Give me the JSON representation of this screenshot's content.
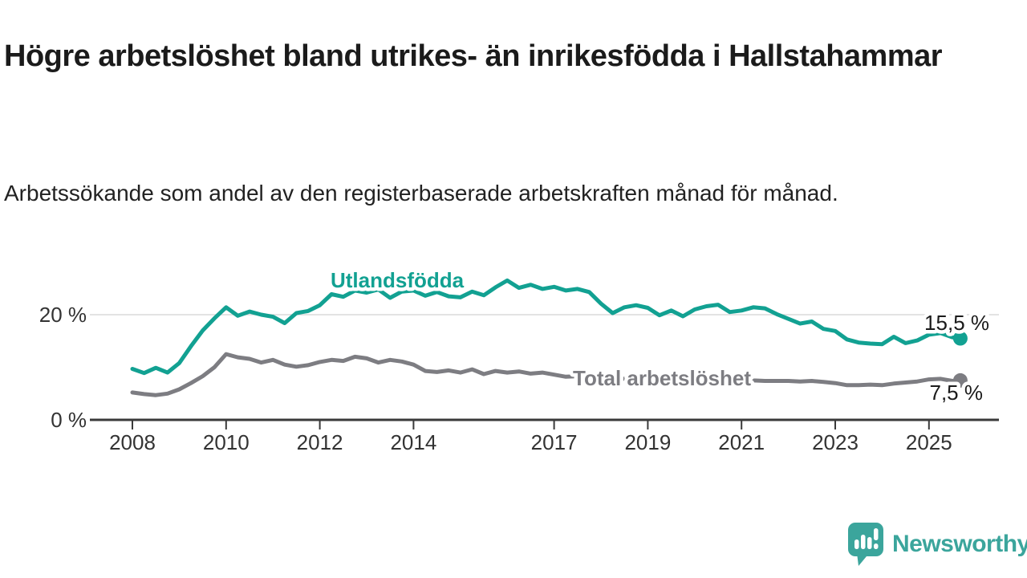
{
  "header": {
    "title": "Högre arbetslöshet bland utrikes- än inrikesfödda i Hallstahammar",
    "subtitle": "Arbetssökande som andel av den registerbaserade arbetskraften månad för månad."
  },
  "branding": {
    "logo_text": "Newsworthy",
    "logo_color": "#3ba59c"
  },
  "chart_data": {
    "type": "line",
    "title": "Högre arbetslöshet bland utrikes- än inrikesfödda i Hallstahammar",
    "xlabel": "",
    "ylabel": "Arbetssökande som andel av den registerbaserade arbetskraften",
    "unit": "%",
    "grid": "horizontal gridline at 20 % only",
    "legend_position": "inline labels on lines",
    "xlim": [
      2007.1,
      2026.4
    ],
    "ylim": [
      0,
      33
    ],
    "x_ticks": [
      "2008",
      "2010",
      "2012",
      "2014",
      "2017",
      "2019",
      "2021",
      "2023",
      "2025"
    ],
    "x_tick_years": [
      2008,
      2010,
      2012,
      2014,
      2017,
      2019,
      2021,
      2023,
      2025
    ],
    "y_ticks": [
      {
        "value": 0,
        "label": "0 %"
      },
      {
        "value": 20,
        "label": "20 %"
      }
    ],
    "series": [
      {
        "name": "Utlandsfödda",
        "color": "#12a192",
        "end_value": 15.5,
        "end_label": "15,5 %",
        "points": [
          [
            2008.0,
            9.7
          ],
          [
            2008.25,
            8.9
          ],
          [
            2008.5,
            9.9
          ],
          [
            2008.75,
            9.0
          ],
          [
            2009.0,
            10.8
          ],
          [
            2009.25,
            14.0
          ],
          [
            2009.5,
            17.0
          ],
          [
            2009.75,
            19.3
          ],
          [
            2010.0,
            21.4
          ],
          [
            2010.25,
            19.8
          ],
          [
            2010.5,
            20.6
          ],
          [
            2010.75,
            20.0
          ],
          [
            2011.0,
            19.6
          ],
          [
            2011.25,
            18.4
          ],
          [
            2011.5,
            20.3
          ],
          [
            2011.75,
            20.7
          ],
          [
            2012.0,
            21.8
          ],
          [
            2012.25,
            23.9
          ],
          [
            2012.5,
            23.4
          ],
          [
            2012.75,
            24.6
          ],
          [
            2013.0,
            24.2
          ],
          [
            2013.25,
            24.8
          ],
          [
            2013.5,
            23.2
          ],
          [
            2013.75,
            24.4
          ],
          [
            2014.0,
            24.6
          ],
          [
            2014.25,
            23.6
          ],
          [
            2014.5,
            24.3
          ],
          [
            2014.75,
            23.5
          ],
          [
            2015.0,
            23.3
          ],
          [
            2015.25,
            24.4
          ],
          [
            2015.5,
            23.7
          ],
          [
            2015.75,
            25.2
          ],
          [
            2016.0,
            26.5
          ],
          [
            2016.25,
            25.1
          ],
          [
            2016.5,
            25.7
          ],
          [
            2016.75,
            24.9
          ],
          [
            2017.0,
            25.3
          ],
          [
            2017.25,
            24.6
          ],
          [
            2017.5,
            24.9
          ],
          [
            2017.75,
            24.3
          ],
          [
            2018.0,
            22.1
          ],
          [
            2018.25,
            20.3
          ],
          [
            2018.5,
            21.4
          ],
          [
            2018.75,
            21.8
          ],
          [
            2019.0,
            21.3
          ],
          [
            2019.25,
            19.9
          ],
          [
            2019.5,
            20.8
          ],
          [
            2019.75,
            19.7
          ],
          [
            2020.0,
            21.0
          ],
          [
            2020.25,
            21.6
          ],
          [
            2020.5,
            21.9
          ],
          [
            2020.75,
            20.5
          ],
          [
            2021.0,
            20.8
          ],
          [
            2021.25,
            21.4
          ],
          [
            2021.5,
            21.2
          ],
          [
            2021.75,
            20.1
          ],
          [
            2022.0,
            19.2
          ],
          [
            2022.25,
            18.3
          ],
          [
            2022.5,
            18.7
          ],
          [
            2022.75,
            17.3
          ],
          [
            2023.0,
            16.9
          ],
          [
            2023.25,
            15.3
          ],
          [
            2023.5,
            14.7
          ],
          [
            2023.75,
            14.5
          ],
          [
            2024.0,
            14.4
          ],
          [
            2024.25,
            15.8
          ],
          [
            2024.5,
            14.6
          ],
          [
            2024.75,
            15.1
          ],
          [
            2025.0,
            16.2
          ],
          [
            2025.25,
            16.5
          ],
          [
            2025.5,
            15.7
          ],
          [
            2025.67,
            15.5
          ]
        ]
      },
      {
        "name": "Total arbetslöshet",
        "color": "#7d7d82",
        "end_value": 7.5,
        "end_label": "7,5 %",
        "points": [
          [
            2008.0,
            5.2
          ],
          [
            2008.25,
            4.9
          ],
          [
            2008.5,
            4.7
          ],
          [
            2008.75,
            5.0
          ],
          [
            2009.0,
            5.8
          ],
          [
            2009.25,
            7.0
          ],
          [
            2009.5,
            8.3
          ],
          [
            2009.75,
            10.0
          ],
          [
            2010.0,
            12.5
          ],
          [
            2010.25,
            11.9
          ],
          [
            2010.5,
            11.6
          ],
          [
            2010.75,
            10.9
          ],
          [
            2011.0,
            11.4
          ],
          [
            2011.25,
            10.5
          ],
          [
            2011.5,
            10.1
          ],
          [
            2011.75,
            10.4
          ],
          [
            2012.0,
            11.0
          ],
          [
            2012.25,
            11.4
          ],
          [
            2012.5,
            11.2
          ],
          [
            2012.75,
            12.0
          ],
          [
            2013.0,
            11.7
          ],
          [
            2013.25,
            10.9
          ],
          [
            2013.5,
            11.4
          ],
          [
            2013.75,
            11.1
          ],
          [
            2014.0,
            10.5
          ],
          [
            2014.25,
            9.3
          ],
          [
            2014.5,
            9.1
          ],
          [
            2014.75,
            9.4
          ],
          [
            2015.0,
            9.0
          ],
          [
            2015.25,
            9.6
          ],
          [
            2015.5,
            8.7
          ],
          [
            2015.75,
            9.3
          ],
          [
            2016.0,
            9.0
          ],
          [
            2016.25,
            9.2
          ],
          [
            2016.5,
            8.8
          ],
          [
            2016.75,
            9.0
          ],
          [
            2017.0,
            8.6
          ],
          [
            2017.25,
            8.2
          ],
          [
            2017.5,
            8.3
          ],
          [
            2017.75,
            8.1
          ],
          [
            2018.0,
            8.0
          ],
          [
            2018.25,
            7.9
          ],
          [
            2018.5,
            7.8
          ],
          [
            2018.75,
            7.8
          ],
          [
            2019.0,
            7.7
          ],
          [
            2019.25,
            7.7
          ],
          [
            2019.5,
            7.6
          ],
          [
            2019.75,
            7.6
          ],
          [
            2020.0,
            7.7
          ],
          [
            2020.25,
            8.0
          ],
          [
            2020.5,
            8.1
          ],
          [
            2020.75,
            7.9
          ],
          [
            2021.0,
            7.7
          ],
          [
            2021.25,
            7.5
          ],
          [
            2021.5,
            7.4
          ],
          [
            2021.75,
            7.4
          ],
          [
            2022.0,
            7.4
          ],
          [
            2022.25,
            7.3
          ],
          [
            2022.5,
            7.4
          ],
          [
            2022.75,
            7.2
          ],
          [
            2023.0,
            7.0
          ],
          [
            2023.25,
            6.6
          ],
          [
            2023.5,
            6.6
          ],
          [
            2023.75,
            6.7
          ],
          [
            2024.0,
            6.6
          ],
          [
            2024.25,
            6.9
          ],
          [
            2024.5,
            7.1
          ],
          [
            2024.75,
            7.3
          ],
          [
            2025.0,
            7.7
          ],
          [
            2025.25,
            7.8
          ],
          [
            2025.5,
            7.4
          ],
          [
            2025.67,
            7.5
          ]
        ]
      }
    ]
  }
}
